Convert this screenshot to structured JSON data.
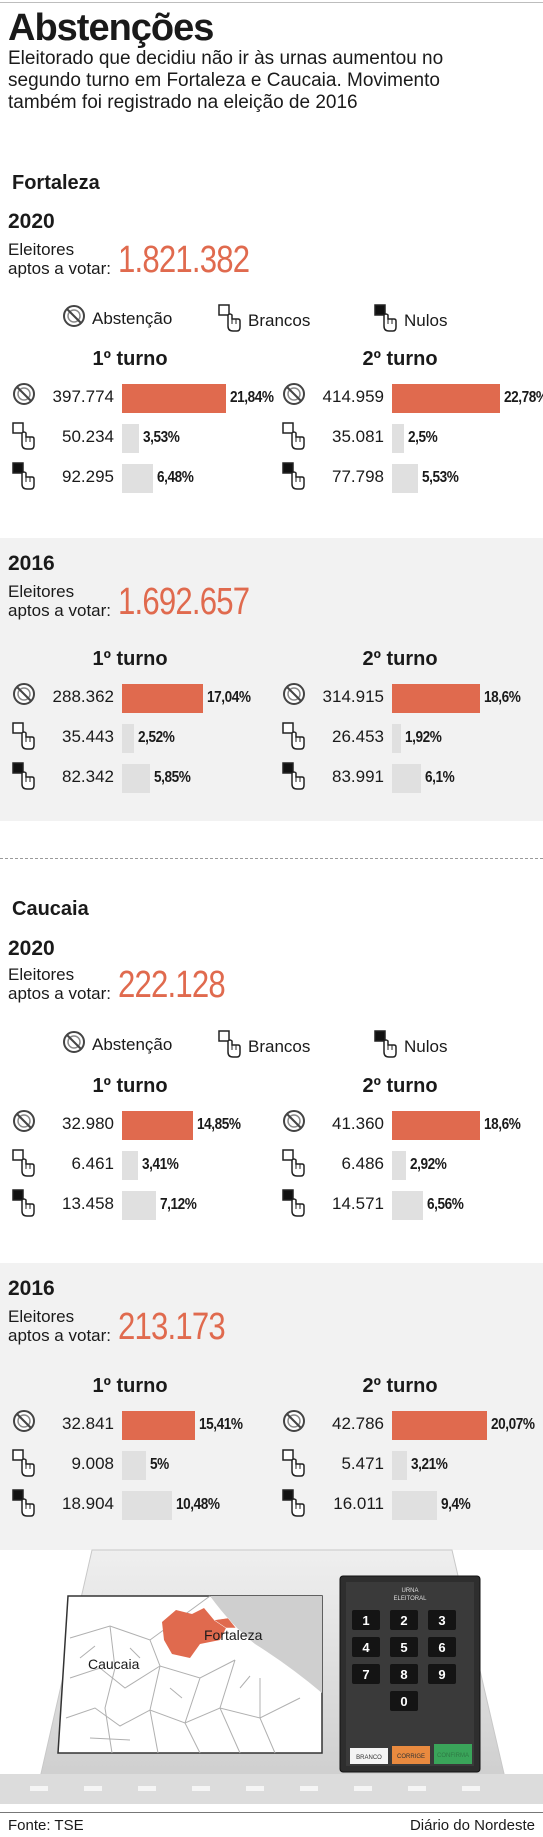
{
  "title": "Abstenções",
  "subtitle": "Eleitorado que decidiu não ir às urnas aumentou no segundo turno em Fortaleza e Caucaia. Movimento também foi registrado na eleição de 2016",
  "colors": {
    "abstencao": "#e06a4e",
    "outros": "#e0e0e0",
    "panel": "#f2f2f2"
  },
  "legend": {
    "abstencao": "Abstenção",
    "brancos": "Brancos",
    "nulos": "Nulos"
  },
  "turnos": {
    "t1": "1º turno",
    "t2": "2º turno"
  },
  "eleitores_label": [
    "Eleitores",
    "aptos a votar:"
  ],
  "fortaleza": {
    "city": "Fortaleza",
    "y2020": {
      "year": "2020",
      "eleitores": "1.821.382"
    },
    "y2016": {
      "year": "2016",
      "eleitores": "1.692.657"
    }
  },
  "caucaia": {
    "city": "Caucaia",
    "y2020": {
      "year": "2020",
      "eleitores": "222.128"
    },
    "y2016": {
      "year": "2016",
      "eleitores": "213.173"
    }
  },
  "map": {
    "caucaia": "Caucaia",
    "fortaleza": "Fortaleza"
  },
  "urna": {
    "title": [
      "URNA",
      "ELEITORAL"
    ],
    "keys": [
      "1",
      "2",
      "3",
      "4",
      "5",
      "6",
      "7",
      "8",
      "9",
      "0"
    ],
    "branco": "BRANCO",
    "corrige": "CORRIGE",
    "confirma": "CONFIRMA"
  },
  "footer": {
    "source": "Fonte: TSE",
    "credit": "Diário do Nordeste"
  },
  "chart_data": [
    {
      "type": "bar",
      "id": "fortaleza-2020",
      "title": "Fortaleza 2020",
      "categories": [
        "Abstenção",
        "Brancos",
        "Nulos"
      ],
      "series": [
        {
          "name": "1º turno",
          "counts": [
            "397.774",
            "50.234",
            "92.295"
          ],
          "values": [
            21.84,
            3.53,
            6.48
          ],
          "labels": [
            "21,84%",
            "3,53%",
            "6,48%"
          ]
        },
        {
          "name": "2º turno",
          "counts": [
            "414.959",
            "35.081",
            "77.798"
          ],
          "values": [
            22.78,
            2.5,
            5.53
          ],
          "labels": [
            "22,78%",
            "2,5%",
            "5,53%"
          ]
        }
      ]
    },
    {
      "type": "bar",
      "id": "fortaleza-2016",
      "title": "Fortaleza 2016",
      "categories": [
        "Abstenção",
        "Brancos",
        "Nulos"
      ],
      "series": [
        {
          "name": "1º turno",
          "counts": [
            "288.362",
            "35.443",
            "82.342"
          ],
          "values": [
            17.04,
            2.52,
            5.85
          ],
          "labels": [
            "17,04%",
            "2,52%",
            "5,85%"
          ]
        },
        {
          "name": "2º turno",
          "counts": [
            "314.915",
            "26.453",
            "83.991"
          ],
          "values": [
            18.6,
            1.92,
            6.1
          ],
          "labels": [
            "18,6%",
            "1,92%",
            "6,1%"
          ]
        }
      ]
    },
    {
      "type": "bar",
      "id": "caucaia-2020",
      "title": "Caucaia 2020",
      "categories": [
        "Abstenção",
        "Brancos",
        "Nulos"
      ],
      "series": [
        {
          "name": "1º turno",
          "counts": [
            "32.980",
            "6.461",
            "13.458"
          ],
          "values": [
            14.85,
            3.41,
            7.12
          ],
          "labels": [
            "14,85%",
            "3,41%",
            "7,12%"
          ]
        },
        {
          "name": "2º turno",
          "counts": [
            "41.360",
            "6.486",
            "14.571"
          ],
          "values": [
            18.6,
            2.92,
            6.56
          ],
          "labels": [
            "18,6%",
            "2,92%",
            "6,56%"
          ]
        }
      ]
    },
    {
      "type": "bar",
      "id": "caucaia-2016",
      "title": "Caucaia 2016",
      "categories": [
        "Abstenção",
        "Brancos",
        "Nulos"
      ],
      "series": [
        {
          "name": "1º turno",
          "counts": [
            "32.841",
            "9.008",
            "18.904"
          ],
          "values": [
            15.41,
            5,
            10.48
          ],
          "labels": [
            "15,41%",
            "5%",
            "10,48%"
          ]
        },
        {
          "name": "2º turno",
          "counts": [
            "42.786",
            "5.471",
            "16.011"
          ],
          "values": [
            20.07,
            3.21,
            9.4
          ],
          "labels": [
            "20,07%",
            "3,21%",
            "9,4%"
          ]
        }
      ]
    }
  ]
}
